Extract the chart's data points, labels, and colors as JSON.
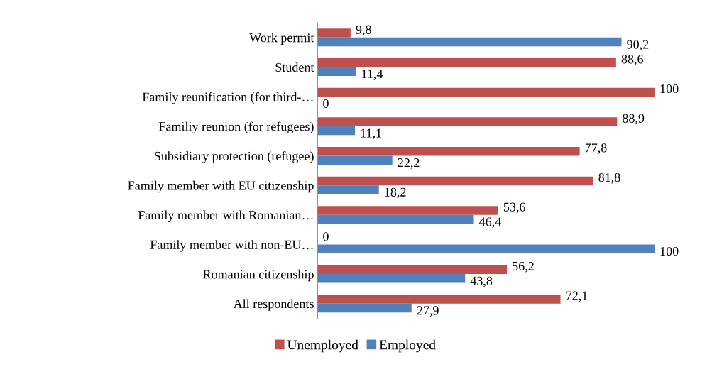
{
  "chart_data": {
    "type": "bar",
    "orientation": "horizontal",
    "categories": [
      "Work permit",
      "Student",
      "Family reunification (for third-…",
      "Familiy reunion (for refugees)",
      "Subsidiary protection (refugee)",
      "Family member with EU citizenship",
      "Family member with Romanian…",
      "Family member with non-EU…",
      "Romanian citizenship",
      "All respondents"
    ],
    "series": [
      {
        "name": "Unemployed",
        "color": "#c0504d",
        "values": [
          9.8,
          88.6,
          100,
          88.9,
          77.8,
          81.8,
          53.6,
          0,
          56.2,
          72.1
        ],
        "value_labels": [
          "9,8",
          "88,6",
          "100",
          "88,9",
          "77,8",
          "81,8",
          "53,6",
          "0",
          "56,2",
          "72,1"
        ]
      },
      {
        "name": "Employed",
        "color": "#4f81bd",
        "values": [
          90.2,
          11.4,
          0,
          11.1,
          22.2,
          18.2,
          46.4,
          100,
          43.8,
          27.9
        ],
        "value_labels": [
          "90,2",
          "11,4",
          "0",
          "11,1",
          "22,2",
          "18,2",
          "46,4",
          "100",
          "43,8",
          "27,9"
        ]
      }
    ],
    "legend": "bottom",
    "grid": false,
    "tick_labels": "y"
  }
}
